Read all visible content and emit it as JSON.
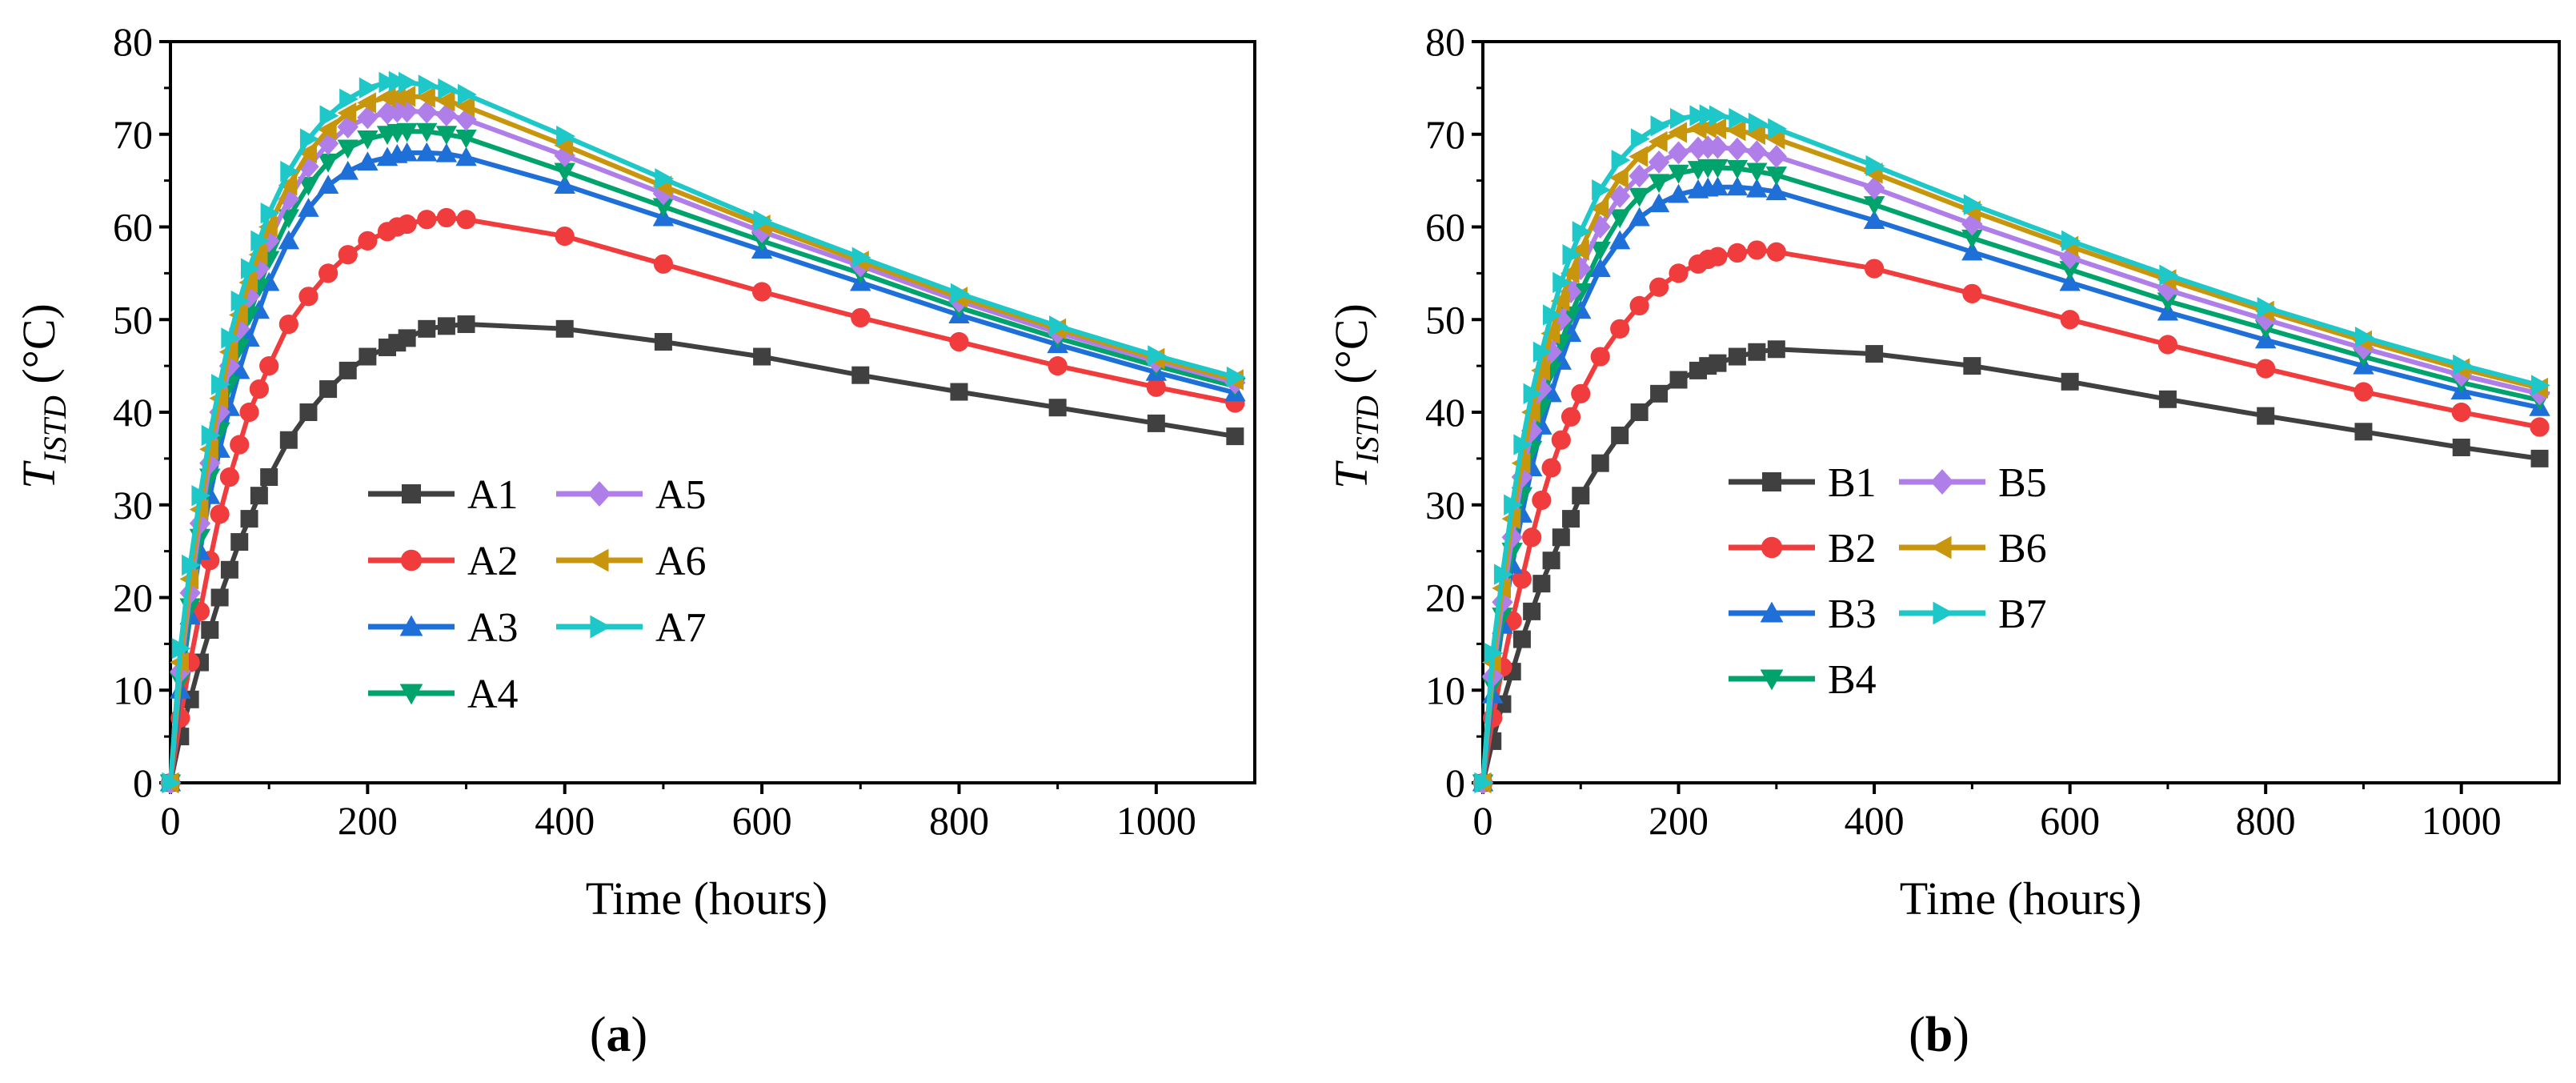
{
  "chart_data": [
    {
      "type": "line",
      "panel_label": {
        "open": "(",
        "letter": "a",
        "close": ")"
      },
      "xlabel": "Time (hours)",
      "ylabel": {
        "symbol": "T",
        "subscript": "ISTD",
        "unit": " (°C)"
      },
      "xlim": [
        0,
        1100
      ],
      "ylim": [
        0,
        80
      ],
      "xticks": [
        0,
        200,
        400,
        600,
        800,
        1000
      ],
      "yticks": [
        0,
        10,
        20,
        30,
        40,
        50,
        60,
        70,
        80
      ],
      "grid": false,
      "legend_position": "lower-center",
      "x": [
        0,
        10,
        20,
        30,
        40,
        50,
        60,
        70,
        80,
        90,
        100,
        120,
        140,
        160,
        180,
        200,
        220,
        230,
        240,
        260,
        280,
        300,
        400,
        500,
        600,
        700,
        800,
        900,
        1000,
        1080
      ],
      "series": [
        {
          "name": "A1",
          "color": "#404040",
          "marker": "square",
          "values": [
            0,
            5,
            9,
            13,
            16.5,
            20,
            23,
            26,
            28.5,
            31,
            33,
            37,
            40,
            42.5,
            44.5,
            46,
            47,
            47.5,
            48,
            49,
            49.3,
            49.5,
            49,
            47.6,
            46,
            44,
            42.2,
            40.5,
            38.8,
            37.4
          ]
        },
        {
          "name": "A2",
          "color": "#f03c3c",
          "marker": "circle",
          "values": [
            0,
            7,
            13,
            18.5,
            24,
            29,
            33,
            36.5,
            40,
            42.5,
            45,
            49.5,
            52.5,
            55,
            57,
            58.5,
            59.5,
            60,
            60.3,
            60.8,
            61,
            60.8,
            59,
            56,
            53,
            50.2,
            47.6,
            45,
            42.7,
            41
          ]
        },
        {
          "name": "A3",
          "color": "#1f6fd8",
          "marker": "triangle-up",
          "values": [
            0,
            10,
            18,
            25,
            31,
            36,
            40.5,
            44.5,
            48,
            51,
            54,
            58.5,
            62,
            64.5,
            66,
            67,
            67.5,
            67.8,
            68,
            68,
            67.9,
            67.5,
            64.5,
            61,
            57.5,
            54,
            50.5,
            47.3,
            44.3,
            42.1
          ]
        },
        {
          "name": "A4",
          "color": "#00a36c",
          "marker": "triangle-down",
          "values": [
            0,
            11,
            19,
            26.5,
            33,
            38,
            43,
            47,
            50.5,
            53.5,
            56.5,
            61,
            64.5,
            67,
            68.5,
            69.5,
            70,
            70.2,
            70.3,
            70.3,
            70,
            69.6,
            66,
            62.2,
            58.5,
            55,
            51.3,
            48,
            45,
            42.8
          ]
        },
        {
          "name": "A5",
          "color": "#b07ee8",
          "marker": "diamond",
          "values": [
            0,
            12,
            20.5,
            28,
            34.5,
            40,
            45,
            49,
            52.5,
            55.5,
            58.5,
            63,
            66.5,
            69,
            70.8,
            71.8,
            72.3,
            72.5,
            72.5,
            72.4,
            72.1,
            71.6,
            67.7,
            63.6,
            59.5,
            55.8,
            52,
            48.6,
            45.5,
            43.2
          ]
        },
        {
          "name": "A6",
          "color": "#c8960c",
          "marker": "triangle-left",
          "values": [
            0,
            13,
            22,
            29.5,
            36,
            41.5,
            46.5,
            50.5,
            54,
            57,
            60,
            64.5,
            68,
            70.5,
            72.3,
            73.4,
            74,
            74.1,
            74.1,
            74,
            73.6,
            73,
            68.8,
            64.4,
            60.2,
            56.3,
            52.4,
            49,
            45.8,
            43.5
          ]
        },
        {
          "name": "A7",
          "color": "#1ec8c8",
          "marker": "triangle-right",
          "values": [
            0,
            14.5,
            23.5,
            31,
            37.5,
            43,
            48,
            52,
            55.5,
            58.5,
            61.5,
            66,
            69.5,
            72,
            73.8,
            75,
            75.6,
            75.7,
            75.6,
            75.3,
            74.9,
            74.3,
            69.8,
            65.2,
            60.7,
            56.7,
            52.8,
            49.3,
            46.1,
            43.8
          ]
        }
      ]
    },
    {
      "type": "line",
      "panel_label": {
        "open": "(",
        "letter": "b",
        "close": ")"
      },
      "xlabel": "Time (hours)",
      "ylabel": {
        "symbol": "T",
        "subscript": "ISTD",
        "unit": " (°C)"
      },
      "xlim": [
        0,
        1100
      ],
      "ylim": [
        0,
        80
      ],
      "xticks": [
        0,
        200,
        400,
        600,
        800,
        1000
      ],
      "yticks": [
        0,
        10,
        20,
        30,
        40,
        50,
        60,
        70,
        80
      ],
      "grid": false,
      "legend_position": "lower-center",
      "x": [
        0,
        10,
        20,
        30,
        40,
        50,
        60,
        70,
        80,
        90,
        100,
        120,
        140,
        160,
        180,
        200,
        220,
        230,
        240,
        260,
        280,
        300,
        400,
        500,
        600,
        700,
        800,
        900,
        1000,
        1080
      ],
      "series": [
        {
          "name": "B1",
          "color": "#404040",
          "marker": "square",
          "values": [
            0,
            4.5,
            8.5,
            12,
            15.5,
            18.5,
            21.5,
            24,
            26.5,
            28.5,
            31,
            34.5,
            37.5,
            40,
            42,
            43.5,
            44.5,
            45,
            45.3,
            46,
            46.5,
            46.8,
            46.3,
            45,
            43.3,
            41.4,
            39.6,
            37.9,
            36.2,
            35
          ]
        },
        {
          "name": "B2",
          "color": "#f03c3c",
          "marker": "circle",
          "values": [
            0,
            7,
            12.5,
            17.5,
            22,
            26.5,
            30.5,
            34,
            37,
            39.5,
            42,
            46,
            49,
            51.5,
            53.5,
            55,
            56,
            56.5,
            56.8,
            57.2,
            57.5,
            57.3,
            55.5,
            52.8,
            50,
            47.3,
            44.7,
            42.2,
            40,
            38.4
          ]
        },
        {
          "name": "B3",
          "color": "#1f6fd8",
          "marker": "triangle-up",
          "values": [
            0,
            9.5,
            17,
            23.5,
            29,
            34,
            38.5,
            42,
            45.5,
            48.5,
            51,
            55.5,
            58.5,
            61,
            62.5,
            63.5,
            64,
            64.2,
            64.3,
            64.3,
            64.1,
            63.8,
            60.7,
            57.3,
            54,
            50.8,
            47.8,
            45,
            42.3,
            40.5
          ]
        },
        {
          "name": "B4",
          "color": "#00a36c",
          "marker": "triangle-down",
          "values": [
            0,
            10.5,
            18,
            25,
            31,
            36,
            40.5,
            44.5,
            47.5,
            50.5,
            53,
            57.5,
            61,
            63.3,
            64.8,
            65.8,
            66.2,
            66.4,
            66.4,
            66.3,
            66,
            65.6,
            62.4,
            58.8,
            55.4,
            52,
            49,
            46,
            43.2,
            41.3
          ]
        },
        {
          "name": "B5",
          "color": "#b07ee8",
          "marker": "diamond",
          "values": [
            0,
            11.5,
            19.5,
            26.5,
            33,
            38,
            42.5,
            46.5,
            50,
            53,
            55.5,
            60,
            63.3,
            65.5,
            67,
            68,
            68.5,
            68.6,
            68.6,
            68.4,
            68.1,
            67.6,
            64.2,
            60.3,
            56.7,
            53.2,
            50,
            46.9,
            44,
            42
          ]
        },
        {
          "name": "B6",
          "color": "#c8960c",
          "marker": "triangle-left",
          "values": [
            0,
            13,
            21,
            28.5,
            34.5,
            40,
            44.5,
            48.5,
            52,
            55,
            57.5,
            62,
            65.3,
            67.6,
            69.2,
            70.2,
            70.6,
            70.7,
            70.6,
            70.4,
            70,
            69.5,
            65.8,
            61.7,
            57.9,
            54.3,
            50.9,
            47.7,
            44.7,
            42.6
          ]
        },
        {
          "name": "B7",
          "color": "#1ec8c8",
          "marker": "triangle-right",
          "values": [
            0,
            14,
            22.5,
            30,
            36.5,
            42,
            46.5,
            50.5,
            54,
            57,
            59.5,
            64,
            67.2,
            69.5,
            70.9,
            71.7,
            72,
            72.1,
            72,
            71.7,
            71.2,
            70.6,
            66.6,
            62.4,
            58.5,
            54.8,
            51.3,
            48.1,
            45.1,
            42.9
          ]
        }
      ]
    }
  ]
}
